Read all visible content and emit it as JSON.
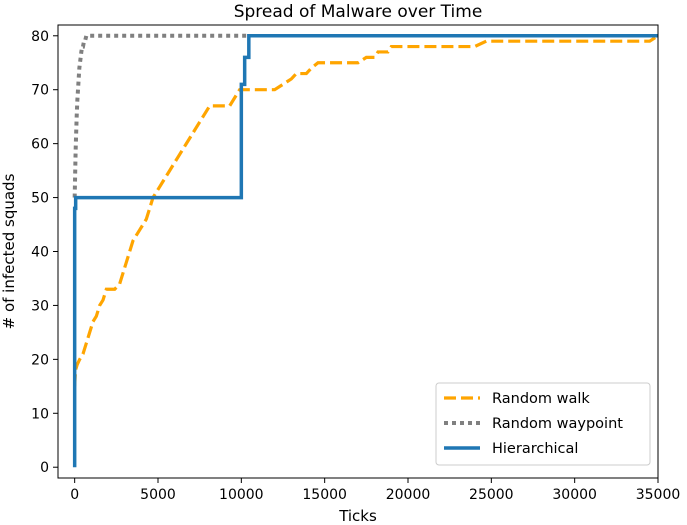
{
  "chart_data": {
    "type": "line",
    "title": "Spread of Malware over Time",
    "xlabel": "Ticks",
    "ylabel": "# of infected squads",
    "xlim": [
      -1000,
      35000
    ],
    "ylim": [
      -2,
      82
    ],
    "xticks": [
      0,
      5000,
      10000,
      15000,
      20000,
      25000,
      30000,
      35000
    ],
    "yticks": [
      0,
      10,
      20,
      30,
      40,
      50,
      60,
      70,
      80
    ],
    "grid": false,
    "legend_position": "lower-right",
    "series": [
      {
        "name": "Random walk",
        "color": "#ffa500",
        "style": "dashed",
        "x": [
          0,
          50,
          150,
          300,
          500,
          700,
          900,
          1100,
          1300,
          1500,
          1700,
          1900,
          2100,
          2400,
          2700,
          2900,
          3100,
          3300,
          3500,
          3700,
          3900,
          4100,
          4300,
          4500,
          4700,
          4900,
          5100,
          5300,
          5500,
          5700,
          5900,
          6100,
          6300,
          6500,
          6700,
          6900,
          7100,
          7300,
          7500,
          7700,
          7900,
          8100,
          8300,
          8500,
          8700,
          8900,
          9100,
          9300,
          9500,
          9700,
          9900,
          10100,
          10300,
          10600,
          11000,
          11500,
          12000,
          12500,
          13000,
          13300,
          13600,
          13900,
          14200,
          14600,
          15000,
          15500,
          16000,
          16500,
          17000,
          17500,
          18000,
          18200,
          18500,
          18800,
          19000,
          19300,
          19700,
          20200,
          21000,
          22000,
          23000,
          24000,
          24700,
          25000,
          25500,
          26500,
          28000,
          30000,
          32000,
          33500,
          34500,
          35000
        ],
        "y": [
          15,
          18,
          19,
          20,
          21,
          23,
          25,
          27,
          28,
          30,
          31,
          33,
          33,
          33,
          34,
          36,
          38,
          40,
          42,
          43,
          44,
          45,
          46,
          48,
          50,
          51,
          52,
          53,
          54,
          55,
          56,
          57,
          58,
          59,
          60,
          61,
          62,
          63,
          64,
          65,
          66,
          67,
          67,
          67,
          67,
          67,
          67,
          67,
          68,
          69,
          70,
          70,
          70,
          70,
          70,
          70,
          70,
          71,
          72,
          73,
          73,
          73,
          74,
          75,
          75,
          75,
          75,
          75,
          75,
          76,
          76,
          77,
          77,
          77,
          78,
          78,
          78,
          78,
          78,
          78,
          78,
          78,
          79,
          79,
          79,
          79,
          79,
          79,
          79,
          79,
          79,
          80
        ]
      },
      {
        "name": "Random waypoint",
        "color": "#808080",
        "style": "dotted",
        "x": [
          0,
          20,
          40,
          60,
          90,
          120,
          160,
          200,
          240,
          280,
          320,
          360,
          400,
          450,
          500,
          560,
          620,
          700,
          800,
          1000,
          3000,
          6000,
          9000,
          10500
        ],
        "y": [
          50,
          53,
          56,
          59,
          62,
          65,
          68,
          70,
          72,
          74,
          75,
          76,
          77,
          78,
          78,
          79,
          79,
          80,
          80,
          80,
          80,
          80,
          80,
          80
        ]
      },
      {
        "name": "Hierarchical",
        "color": "#1f77b4",
        "style": "solid",
        "x": [
          0,
          0,
          30,
          60,
          60,
          10000,
          10000,
          10050,
          10050,
          10200,
          10200,
          10300,
          10300,
          10450,
          10450,
          35000
        ],
        "y": [
          0,
          48,
          48,
          48,
          50,
          50,
          71,
          71,
          71,
          71,
          76,
          76,
          76,
          76,
          80,
          80
        ]
      }
    ]
  }
}
